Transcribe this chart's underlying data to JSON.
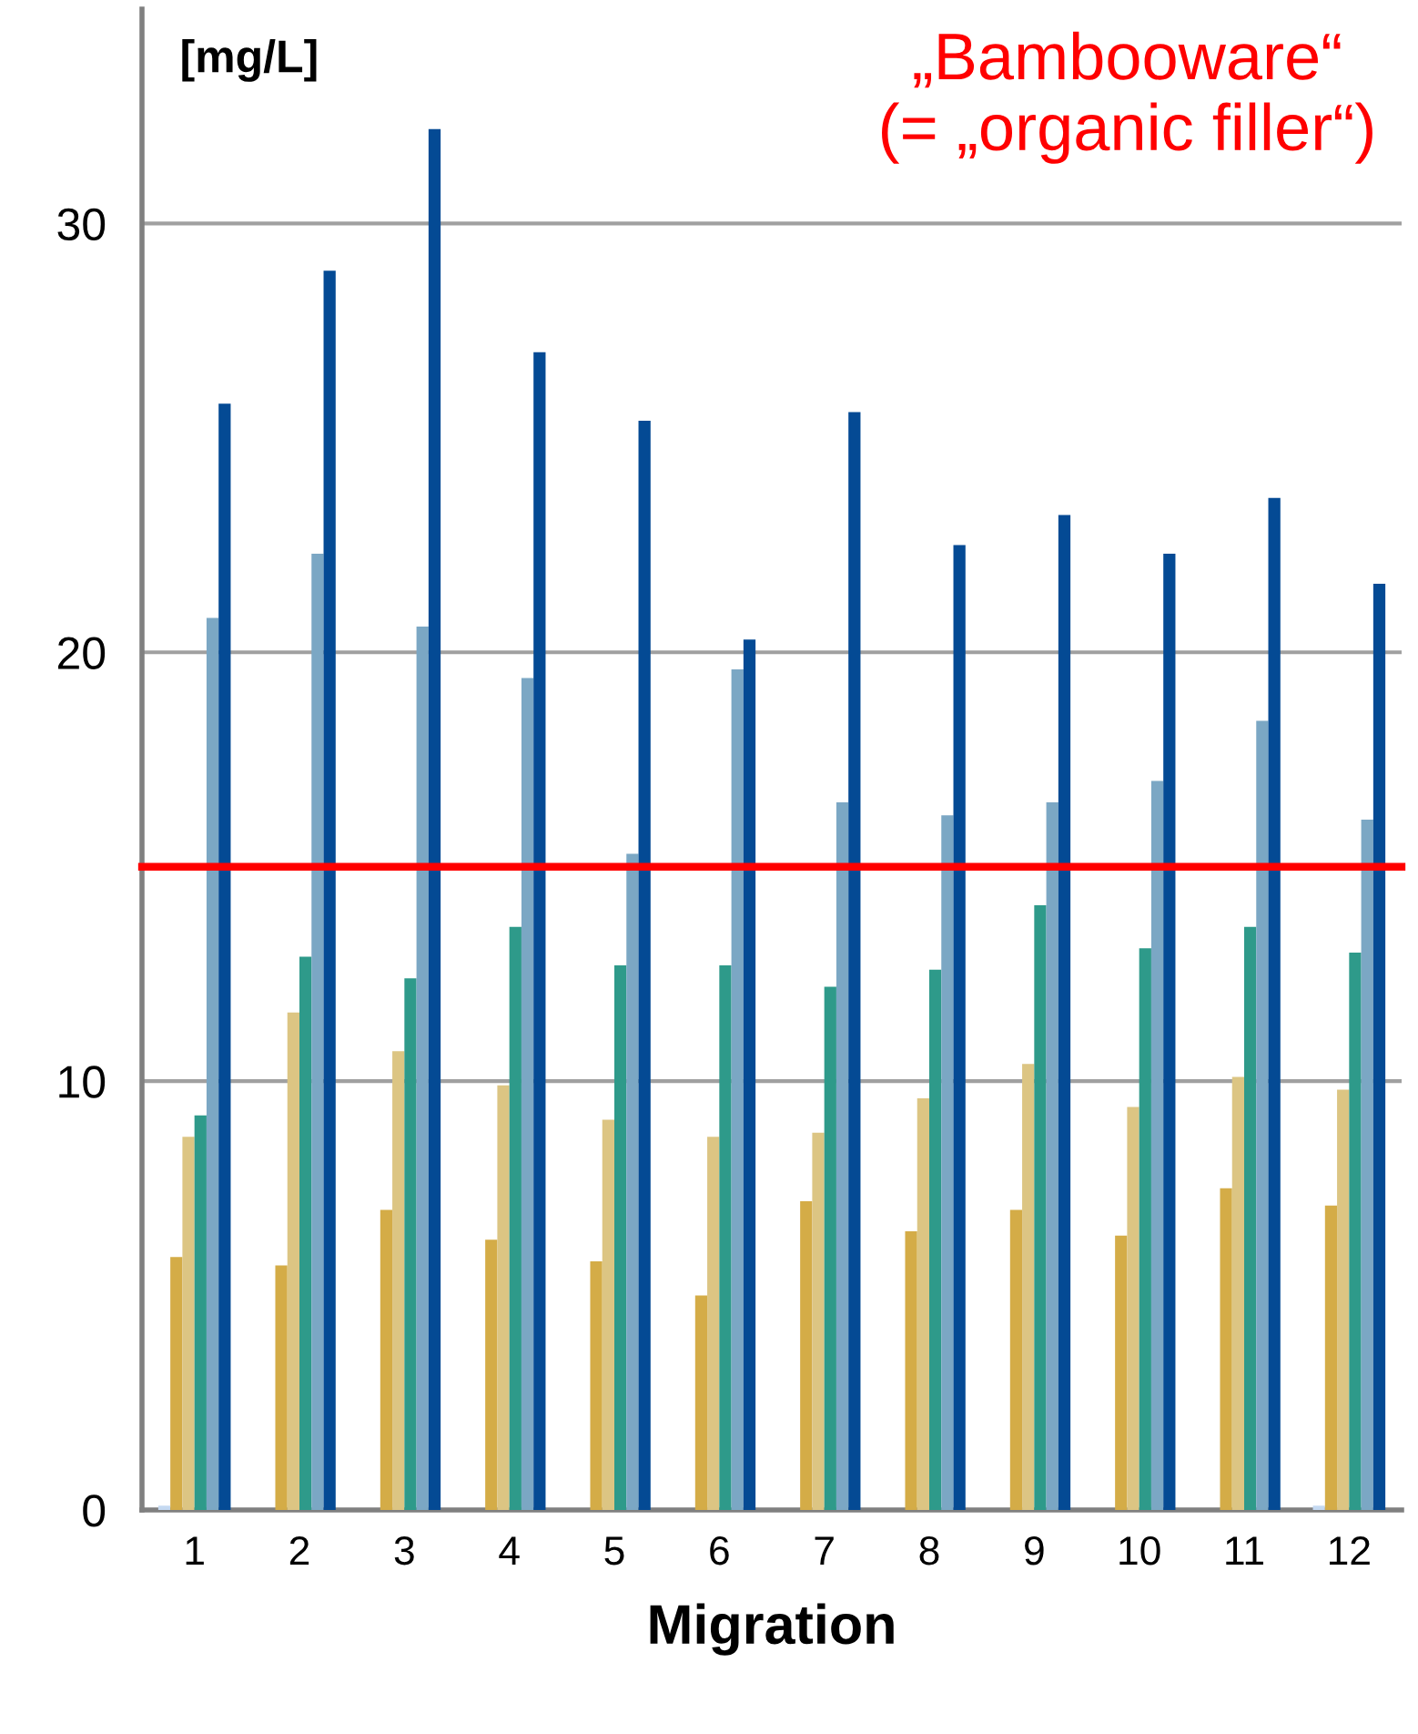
{
  "chart_data": {
    "type": "bar",
    "title": "„Bambooware“\n(= „organic filler“)",
    "xlabel": "Migration",
    "ylabel": "[mg/L]",
    "categories": [
      "1",
      "2",
      "3",
      "4",
      "5",
      "6",
      "7",
      "8",
      "9",
      "10",
      "11",
      "12"
    ],
    "series": [
      {
        "color": "#c5d9f1",
        "values": [
          0.1,
          0,
          0,
          0,
          0,
          0,
          0,
          0,
          0,
          0,
          0,
          0.1
        ]
      },
      {
        "color": "#d4ac47",
        "values": [
          5.9,
          5.7,
          7.0,
          6.3,
          5.8,
          5.0,
          7.2,
          6.5,
          7.0,
          6.4,
          7.5,
          7.1
        ]
      },
      {
        "color": "#dcc583",
        "values": [
          8.7,
          11.6,
          10.7,
          9.9,
          9.1,
          8.7,
          8.8,
          9.6,
          10.4,
          9.4,
          10.1,
          9.8
        ]
      },
      {
        "color": "#2e9a8a",
        "values": [
          9.2,
          12.9,
          12.4,
          13.6,
          12.7,
          12.7,
          12.2,
          12.6,
          14.1,
          13.1,
          13.6,
          13.0
        ]
      },
      {
        "color": "#7ba7c4",
        "values": [
          20.8,
          22.3,
          20.6,
          19.4,
          15.3,
          19.6,
          16.5,
          16.2,
          16.5,
          17.0,
          18.4,
          16.1
        ]
      },
      {
        "color": "#044a94",
        "values": [
          25.8,
          28.9,
          32.2,
          27.0,
          25.4,
          20.3,
          25.6,
          22.5,
          23.2,
          22.3,
          23.6,
          21.6
        ]
      }
    ],
    "ylim": [
      0,
      35
    ],
    "yticks": [
      0,
      10,
      20,
      30
    ],
    "grid": "y",
    "ref_lines": [
      {
        "axis": "y",
        "value": 15,
        "color": "#ff0000"
      }
    ]
  }
}
